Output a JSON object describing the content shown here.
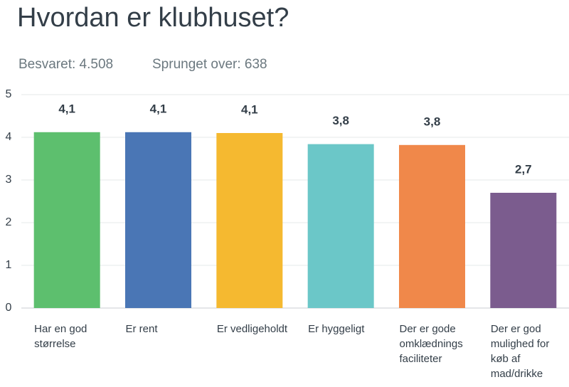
{
  "chart_data": {
    "type": "bar",
    "title": "Hvordan er klubhuset?",
    "answered": "Besvaret: 4.508",
    "skipped": "Sprunget over: 638",
    "categories": [
      "Har en god størrelse",
      "Er rent",
      "Er vedligeholdt",
      "Er hyggeligt",
      "Der er gode omklædnings faciliteter",
      "Der er god mulighed for køb af mad/drikke"
    ],
    "values": [
      4.12,
      4.12,
      4.1,
      3.84,
      3.82,
      2.7
    ],
    "value_labels": [
      "4,1",
      "4,1",
      "4,1",
      "3,8",
      "3,8",
      "2,7"
    ],
    "colors": [
      "#5dbf6e",
      "#4a76b5",
      "#f5b930",
      "#6bc7c8",
      "#f0884a",
      "#7b5c8e"
    ],
    "ylim": [
      0,
      5
    ],
    "yticks": [
      0,
      1,
      2,
      3,
      4,
      5
    ],
    "grid": true
  }
}
